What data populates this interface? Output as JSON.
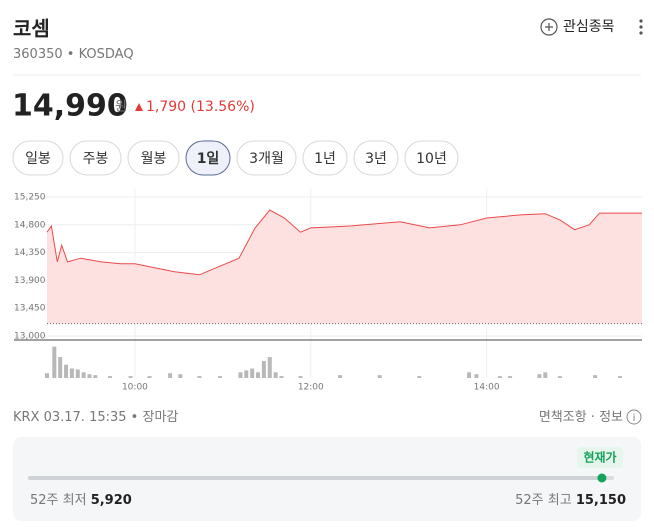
{
  "header": {
    "name": "코셈",
    "code": "360350",
    "market": "KOSDAQ",
    "watch": "관심종목"
  },
  "quote": {
    "price": {
      "value": 14990,
      "label": "14,990"
    },
    "unit": "원",
    "change": "1,790",
    "change_pct": "(13.56%)"
  },
  "tabs": {
    "items": [
      "일봉",
      "주봉",
      "월봉",
      "1일",
      "3개월",
      "1년",
      "3년",
      "10년"
    ],
    "active": 3
  },
  "chart_data": {
    "type": "area",
    "color": "#ec4a4a",
    "fill": "#fde0e0",
    "x": [
      540,
      543,
      547,
      550,
      554,
      563,
      577,
      590,
      600,
      627,
      644,
      671,
      682,
      692,
      702,
      713,
      720,
      747,
      781,
      801,
      822,
      840,
      863,
      880,
      890,
      900,
      910,
      917,
      946
    ],
    "values": [
      14680,
      14780,
      14200,
      14470,
      14200,
      14260,
      14200,
      14170,
      14170,
      14040,
      13990,
      14260,
      14750,
      15040,
      14910,
      14680,
      14750,
      14780,
      14850,
      14750,
      14800,
      14910,
      14960,
      14980,
      14880,
      14720,
      14800,
      14990,
      14990
    ],
    "xlim": [
      540,
      946
    ],
    "xticks": [
      {
        "value": 600,
        "label": "10:00"
      },
      {
        "value": 720,
        "label": "12:00"
      },
      {
        "value": 840,
        "label": "14:00"
      }
    ],
    "ylim": [
      13000,
      15250
    ],
    "yticks": [
      {
        "value": 13000,
        "label": "13,000"
      },
      {
        "value": 13450,
        "label": "13,450"
      },
      {
        "value": 13900,
        "label": "13,900"
      },
      {
        "value": 14350,
        "label": "14,350"
      },
      {
        "value": 14800,
        "label": "14,800"
      },
      {
        "value": 15250,
        "label": "15,250"
      }
    ],
    "grid": true,
    "baseline": 13200,
    "volume": {
      "color": "#b8b8b8",
      "x": [
        540,
        545,
        549,
        553,
        557,
        561,
        565,
        569,
        573,
        583,
        597,
        610,
        624,
        631,
        644,
        658,
        672,
        676,
        680,
        684,
        688,
        692,
        696,
        700,
        713,
        740,
        767,
        794,
        828,
        833,
        849,
        856,
        876,
        880,
        890,
        914,
        931
      ],
      "values": [
        5,
        33,
        22,
        14,
        10,
        9,
        6,
        4,
        3,
        2,
        2,
        2,
        5,
        4,
        2,
        2,
        6,
        8,
        10,
        6,
        18,
        22,
        6,
        2,
        2,
        3,
        3,
        2,
        6,
        4,
        2,
        2,
        4,
        6,
        2,
        3,
        2
      ],
      "ylim": [
        0,
        40
      ]
    }
  },
  "footer": {
    "source": "KRX 03.17. 15:35",
    "status": "장마감",
    "disclaimer": "면책조항",
    "info": "정보"
  },
  "range": {
    "badge": "현재가",
    "low_label": "52주 최저",
    "low": {
      "value": 5920,
      "label": "5,920"
    },
    "high_label": "52주 최고",
    "high": {
      "value": 15150,
      "label": "15,150"
    }
  }
}
